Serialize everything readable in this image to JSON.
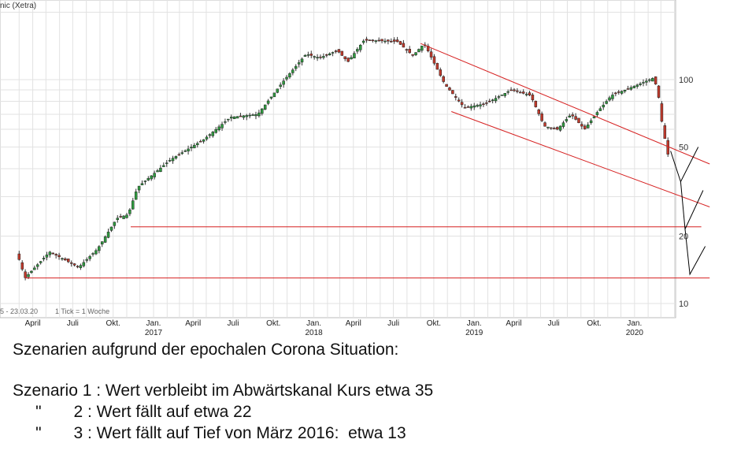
{
  "chart_data": {
    "type": "candlestick",
    "title": "nic (Xetra)",
    "period_label": "5 - 23.03.20",
    "tick_label": "1 Tick = 1 Woche",
    "y_scale": "log",
    "ylim": [
      9,
      190
    ],
    "y_ticks": [
      10,
      20,
      50,
      100
    ],
    "x_range": [
      "2016-03-01",
      "2020-03-23"
    ],
    "x_ticks": [
      {
        "label": "April",
        "date": "2016-04-01"
      },
      {
        "label": "Juli",
        "date": "2016-07-01"
      },
      {
        "label": "Okt.",
        "date": "2016-10-01"
      },
      {
        "label": "Jan.",
        "date": "2017-01-01",
        "year": "2017"
      },
      {
        "label": "April",
        "date": "2017-04-01"
      },
      {
        "label": "Juli",
        "date": "2017-07-01"
      },
      {
        "label": "Okt.",
        "date": "2017-10-01"
      },
      {
        "label": "Jan.",
        "date": "2018-01-01",
        "year": "2018"
      },
      {
        "label": "April",
        "date": "2018-04-01"
      },
      {
        "label": "Juli",
        "date": "2018-07-01"
      },
      {
        "label": "Okt.",
        "date": "2018-10-01"
      },
      {
        "label": "Jan.",
        "date": "2019-01-01",
        "year": "2019"
      },
      {
        "label": "April",
        "date": "2019-04-01"
      },
      {
        "label": "Juli",
        "date": "2019-07-01"
      },
      {
        "label": "Okt.",
        "date": "2019-10-01"
      },
      {
        "label": "Jan.",
        "date": "2020-01-01",
        "year": "2020"
      }
    ],
    "price_path": [
      {
        "date": "2016-03-01",
        "value": 17
      },
      {
        "date": "2016-03-20",
        "value": 13
      },
      {
        "date": "2016-05-15",
        "value": 17
      },
      {
        "date": "2016-06-10",
        "value": 16
      },
      {
        "date": "2016-07-20",
        "value": 14.5
      },
      {
        "date": "2016-09-01",
        "value": 17.5
      },
      {
        "date": "2016-10-15",
        "value": 24
      },
      {
        "date": "2016-11-10",
        "value": 25
      },
      {
        "date": "2016-12-01",
        "value": 33
      },
      {
        "date": "2017-02-15",
        "value": 44
      },
      {
        "date": "2017-05-01",
        "value": 54
      },
      {
        "date": "2017-07-01",
        "value": 68
      },
      {
        "date": "2017-09-01",
        "value": 70
      },
      {
        "date": "2017-11-01",
        "value": 100
      },
      {
        "date": "2017-12-20",
        "value": 130
      },
      {
        "date": "2018-01-20",
        "value": 125
      },
      {
        "date": "2018-03-01",
        "value": 135
      },
      {
        "date": "2018-03-25",
        "value": 120
      },
      {
        "date": "2018-05-01",
        "value": 150
      },
      {
        "date": "2018-07-15",
        "value": 148
      },
      {
        "date": "2018-08-20",
        "value": 128
      },
      {
        "date": "2018-09-15",
        "value": 145
      },
      {
        "date": "2018-11-01",
        "value": 95
      },
      {
        "date": "2018-12-15",
        "value": 75
      },
      {
        "date": "2019-02-01",
        "value": 78
      },
      {
        "date": "2019-04-01",
        "value": 90
      },
      {
        "date": "2019-05-15",
        "value": 85
      },
      {
        "date": "2019-06-15",
        "value": 62
      },
      {
        "date": "2019-07-15",
        "value": 60
      },
      {
        "date": "2019-08-15",
        "value": 70
      },
      {
        "date": "2019-09-15",
        "value": 60
      },
      {
        "date": "2019-10-15",
        "value": 72
      },
      {
        "date": "2019-11-15",
        "value": 85
      },
      {
        "date": "2020-01-15",
        "value": 95
      },
      {
        "date": "2020-02-20",
        "value": 102
      },
      {
        "date": "2020-03-01",
        "value": 85
      },
      {
        "date": "2020-03-10",
        "value": 62
      },
      {
        "date": "2020-03-23",
        "value": 46
      }
    ],
    "red_lines": [
      {
        "name": "channel-top",
        "from": [
          "2018-09-01",
          145
        ],
        "to": [
          "2020-06-20",
          42
        ]
      },
      {
        "name": "channel-bottom",
        "from": [
          "2018-11-10",
          72
        ],
        "to": [
          "2020-06-20",
          27
        ]
      },
      {
        "name": "support-22",
        "from": [
          "2016-11-10",
          22
        ],
        "to": [
          "2020-06-01",
          22
        ]
      },
      {
        "name": "support-13",
        "from": [
          "2016-03-15",
          13
        ],
        "to": [
          "2020-06-20",
          13
        ]
      }
    ],
    "scenario_lines": [
      {
        "name": "scenario-1",
        "points": [
          [
            "2020-03-23",
            48
          ],
          [
            "2020-04-15",
            35
          ],
          [
            "2020-05-25",
            50
          ]
        ]
      },
      {
        "name": "scenario-2",
        "points": [
          [
            "2020-04-15",
            35
          ],
          [
            "2020-04-25",
            21.5
          ],
          [
            "2020-06-05",
            32
          ]
        ]
      },
      {
        "name": "scenario-3",
        "points": [
          [
            "2020-04-25",
            21.5
          ],
          [
            "2020-05-06",
            13.5
          ],
          [
            "2020-06-10",
            18
          ]
        ]
      }
    ]
  },
  "notes": {
    "heading": "Szenarien aufgrund der epochalen Corona Situation:",
    "scenario1": "Szenario 1 : Wert verbleibt im Abwärtskanal Kurs etwa 35",
    "scenario2": "     \"       2 : Wert fällt auf etwa 22",
    "scenario3": "     \"       3 : Wert fällt auf Tief von März 2016:  etwa 13"
  }
}
